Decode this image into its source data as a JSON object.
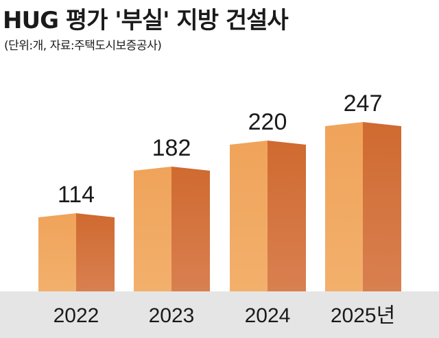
{
  "title": "HUG 평가 '부실' 지방 건설사",
  "subtitle": "(단위:개, 자료:주택도시보증공사)",
  "colors": {
    "bar_front": "#F0A35A",
    "bar_front_bottom": "#F2B06C",
    "bar_side": "#CF6A30",
    "bar_side_bottom": "#D98050",
    "bar_top": "#F5B77A",
    "base_band": "#E5E5E5"
  },
  "chart_data": {
    "type": "bar",
    "title": "HUG 평가 '부실' 지방 건설사",
    "subtitle": "(단위:개, 자료:주택도시보증공사)",
    "categories": [
      "2022",
      "2023",
      "2024",
      "2025년"
    ],
    "values": [
      114,
      182,
      220,
      247
    ],
    "data_labels": [
      "114",
      "182",
      "220",
      "247"
    ],
    "xlabel": "",
    "ylabel": "",
    "grid": false,
    "legend": "none"
  }
}
